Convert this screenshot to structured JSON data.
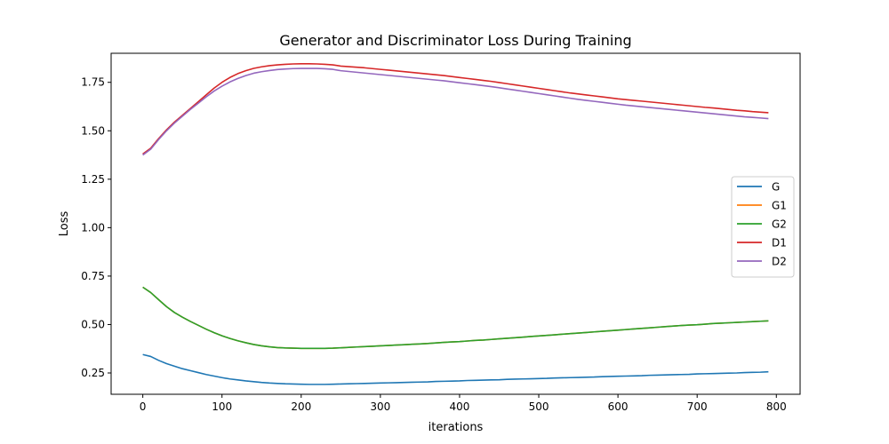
{
  "chart_data": {
    "type": "line",
    "title": "Generator and Discriminator Loss During Training",
    "xlabel": "iterations",
    "ylabel": "Loss",
    "xlim": [
      -40,
      830
    ],
    "ylim": [
      0.14,
      1.9
    ],
    "xticks": [
      0,
      100,
      200,
      300,
      400,
      500,
      600,
      700,
      800
    ],
    "xtick_labels": [
      "0",
      "100",
      "200",
      "300",
      "400",
      "500",
      "600",
      "700",
      "800"
    ],
    "yticks": [
      0.25,
      0.5,
      0.75,
      1.0,
      1.25,
      1.5,
      1.75
    ],
    "ytick_labels": [
      "0.25",
      "0.50",
      "0.75",
      "1.00",
      "1.25",
      "1.50",
      "1.75"
    ],
    "grid": false,
    "legend_position": "center-right",
    "x": [
      0,
      10,
      20,
      30,
      40,
      50,
      60,
      70,
      80,
      90,
      100,
      110,
      120,
      130,
      140,
      150,
      160,
      170,
      180,
      190,
      200,
      210,
      220,
      230,
      240,
      250,
      260,
      270,
      280,
      290,
      300,
      310,
      320,
      330,
      340,
      350,
      360,
      370,
      380,
      390,
      400,
      410,
      420,
      430,
      440,
      450,
      460,
      470,
      480,
      490,
      500,
      510,
      520,
      530,
      540,
      550,
      560,
      570,
      580,
      590,
      600,
      610,
      620,
      630,
      640,
      650,
      660,
      670,
      680,
      690,
      700,
      710,
      720,
      730,
      740,
      750,
      760,
      770,
      780,
      790
    ],
    "series": [
      {
        "name": "G",
        "color": "#1f77b4",
        "values": [
          0.345,
          0.335,
          0.315,
          0.298,
          0.285,
          0.272,
          0.262,
          0.252,
          0.242,
          0.234,
          0.226,
          0.219,
          0.214,
          0.209,
          0.205,
          0.201,
          0.198,
          0.196,
          0.194,
          0.193,
          0.192,
          0.191,
          0.191,
          0.191,
          0.192,
          0.193,
          0.194,
          0.195,
          0.196,
          0.197,
          0.198,
          0.199,
          0.2,
          0.201,
          0.202,
          0.203,
          0.204,
          0.206,
          0.207,
          0.208,
          0.209,
          0.211,
          0.212,
          0.213,
          0.214,
          0.215,
          0.217,
          0.218,
          0.219,
          0.22,
          0.221,
          0.222,
          0.224,
          0.225,
          0.226,
          0.227,
          0.228,
          0.229,
          0.231,
          0.232,
          0.233,
          0.234,
          0.235,
          0.236,
          0.238,
          0.239,
          0.24,
          0.241,
          0.242,
          0.243,
          0.245,
          0.246,
          0.247,
          0.248,
          0.249,
          0.25,
          0.252,
          0.253,
          0.254,
          0.256
        ]
      },
      {
        "name": "G1",
        "color": "#ff7f0e",
        "values": [
          0.693,
          0.665,
          0.628,
          0.592,
          0.562,
          0.538,
          0.516,
          0.496,
          0.476,
          0.458,
          0.442,
          0.428,
          0.416,
          0.406,
          0.397,
          0.39,
          0.385,
          0.381,
          0.379,
          0.378,
          0.377,
          0.377,
          0.377,
          0.377,
          0.378,
          0.38,
          0.382,
          0.384,
          0.386,
          0.388,
          0.39,
          0.392,
          0.394,
          0.396,
          0.398,
          0.4,
          0.402,
          0.405,
          0.408,
          0.41,
          0.412,
          0.415,
          0.418,
          0.42,
          0.423,
          0.426,
          0.429,
          0.432,
          0.435,
          0.438,
          0.441,
          0.444,
          0.447,
          0.45,
          0.453,
          0.456,
          0.459,
          0.462,
          0.465,
          0.468,
          0.471,
          0.474,
          0.477,
          0.48,
          0.483,
          0.486,
          0.489,
          0.492,
          0.495,
          0.497,
          0.499,
          0.502,
          0.505,
          0.507,
          0.509,
          0.511,
          0.513,
          0.515,
          0.517,
          0.519
        ]
      },
      {
        "name": "G2",
        "color": "#2ca02c",
        "values": [
          0.693,
          0.665,
          0.628,
          0.592,
          0.562,
          0.538,
          0.516,
          0.496,
          0.476,
          0.458,
          0.442,
          0.428,
          0.416,
          0.406,
          0.397,
          0.39,
          0.385,
          0.381,
          0.379,
          0.378,
          0.377,
          0.377,
          0.377,
          0.377,
          0.378,
          0.38,
          0.382,
          0.384,
          0.386,
          0.388,
          0.39,
          0.392,
          0.394,
          0.396,
          0.398,
          0.4,
          0.402,
          0.405,
          0.408,
          0.41,
          0.412,
          0.415,
          0.418,
          0.42,
          0.423,
          0.426,
          0.429,
          0.432,
          0.435,
          0.438,
          0.441,
          0.444,
          0.447,
          0.45,
          0.453,
          0.456,
          0.459,
          0.462,
          0.465,
          0.468,
          0.471,
          0.474,
          0.477,
          0.48,
          0.483,
          0.486,
          0.489,
          0.492,
          0.495,
          0.497,
          0.499,
          0.502,
          0.505,
          0.507,
          0.509,
          0.511,
          0.513,
          0.515,
          0.517,
          0.519
        ]
      },
      {
        "name": "D1",
        "color": "#d62728",
        "values": [
          1.38,
          1.41,
          1.46,
          1.505,
          1.545,
          1.58,
          1.615,
          1.65,
          1.685,
          1.72,
          1.75,
          1.775,
          1.795,
          1.81,
          1.822,
          1.83,
          1.836,
          1.84,
          1.843,
          1.845,
          1.846,
          1.846,
          1.845,
          1.843,
          1.84,
          1.834,
          1.831,
          1.828,
          1.825,
          1.821,
          1.817,
          1.813,
          1.809,
          1.805,
          1.801,
          1.797,
          1.793,
          1.789,
          1.785,
          1.78,
          1.775,
          1.77,
          1.765,
          1.76,
          1.755,
          1.749,
          1.743,
          1.737,
          1.731,
          1.725,
          1.719,
          1.713,
          1.707,
          1.701,
          1.695,
          1.69,
          1.685,
          1.68,
          1.675,
          1.67,
          1.665,
          1.661,
          1.657,
          1.653,
          1.649,
          1.645,
          1.641,
          1.637,
          1.633,
          1.629,
          1.625,
          1.621,
          1.618,
          1.614,
          1.61,
          1.606,
          1.603,
          1.599,
          1.596,
          1.593
        ]
      },
      {
        "name": "D2",
        "color": "#9467bd",
        "values": [
          1.375,
          1.405,
          1.455,
          1.5,
          1.54,
          1.575,
          1.61,
          1.642,
          1.675,
          1.705,
          1.73,
          1.752,
          1.77,
          1.785,
          1.797,
          1.805,
          1.811,
          1.816,
          1.819,
          1.821,
          1.822,
          1.822,
          1.822,
          1.82,
          1.817,
          1.81,
          1.806,
          1.802,
          1.798,
          1.794,
          1.79,
          1.786,
          1.782,
          1.778,
          1.774,
          1.77,
          1.766,
          1.762,
          1.758,
          1.753,
          1.748,
          1.743,
          1.738,
          1.733,
          1.728,
          1.722,
          1.716,
          1.71,
          1.704,
          1.698,
          1.692,
          1.686,
          1.68,
          1.674,
          1.668,
          1.662,
          1.657,
          1.652,
          1.647,
          1.642,
          1.637,
          1.632,
          1.628,
          1.624,
          1.62,
          1.616,
          1.612,
          1.608,
          1.604,
          1.6,
          1.596,
          1.592,
          1.588,
          1.584,
          1.58,
          1.576,
          1.572,
          1.569,
          1.566,
          1.563
        ]
      }
    ]
  }
}
